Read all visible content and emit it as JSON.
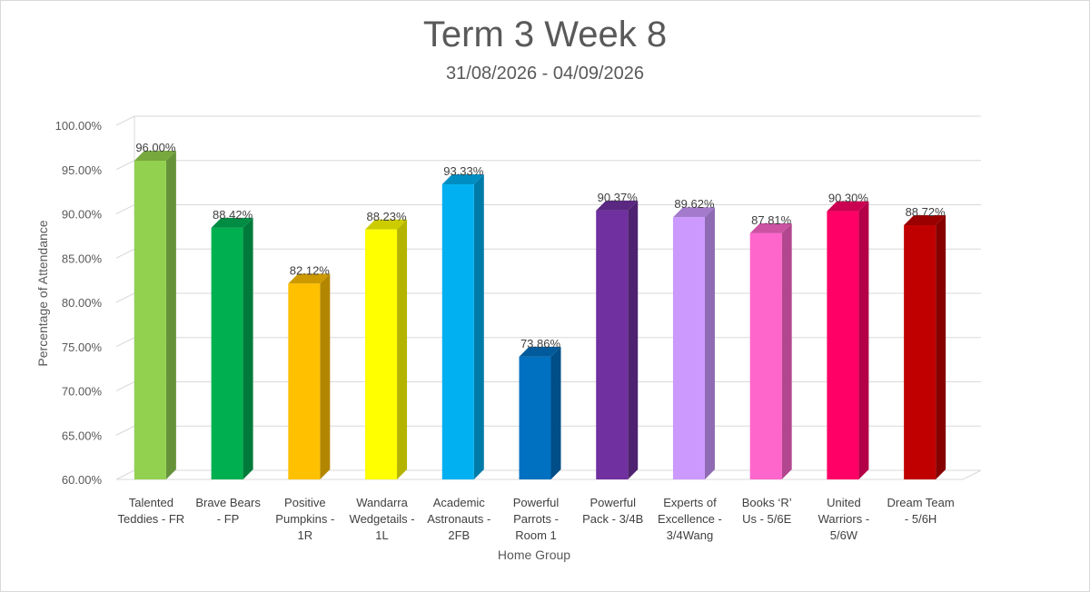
{
  "chart_data": {
    "type": "bar",
    "title": "Term 3 Week 8",
    "subtitle": "31/08/2026 - 04/09/2026",
    "xlabel": "Home Group",
    "ylabel": "Percentage of Attendance",
    "ylim": [
      60,
      100
    ],
    "ytick_step": 5,
    "yticks": [
      "60.00%",
      "65.00%",
      "70.00%",
      "75.00%",
      "80.00%",
      "85.00%",
      "90.00%",
      "95.00%",
      "100.00%"
    ],
    "grid": true,
    "legend": "none",
    "categories": [
      [
        "Talented",
        "Teddies - FR"
      ],
      [
        "Brave Bears",
        "- FP"
      ],
      [
        "Positive",
        "Pumpkins -",
        "1R"
      ],
      [
        "Wandarra",
        "Wedgetails -",
        "1L"
      ],
      [
        "Academic",
        "Astronauts -",
        "2FB"
      ],
      [
        "Powerful",
        "Parrots -",
        "Room 1"
      ],
      [
        "Powerful",
        "Pack - 3/4B"
      ],
      [
        "Experts of",
        "Excellence -",
        "3/4Wang"
      ],
      [
        "Books ‘R’",
        "Us - 5/6E"
      ],
      [
        "United",
        "Warriors -",
        "5/6W"
      ],
      [
        "Dream Team",
        "- 5/6H"
      ]
    ],
    "values": [
      96.0,
      88.42,
      82.12,
      88.23,
      93.33,
      73.86,
      90.37,
      89.62,
      87.81,
      90.3,
      88.72
    ],
    "value_labels": [
      "96.00%",
      "88.42%",
      "82.12%",
      "88.23%",
      "93.33%",
      "73.86%",
      "90.37%",
      "89.62%",
      "87.81%",
      "90.30%",
      "88.72%"
    ],
    "colors": [
      "#92d050",
      "#00b050",
      "#ffc000",
      "#ffff00",
      "#00b0f0",
      "#0070c0",
      "#7030a0",
      "#cc99ff",
      "#ff66cc",
      "#ff0066",
      "#c00000"
    ],
    "side_colors": [
      "#66933a",
      "#007a3a",
      "#b38600",
      "#b3b300",
      "#007ba8",
      "#004e87",
      "#4e2270",
      "#8f6bb3",
      "#b3478f",
      "#b30047",
      "#860000"
    ],
    "top_colors": [
      "#76a83e",
      "#008c43",
      "#cc9a00",
      "#cccc00",
      "#008ec2",
      "#005a9c",
      "#5a2781",
      "#a37acc",
      "#cc52a3",
      "#cc0052",
      "#9a0000"
    ]
  }
}
